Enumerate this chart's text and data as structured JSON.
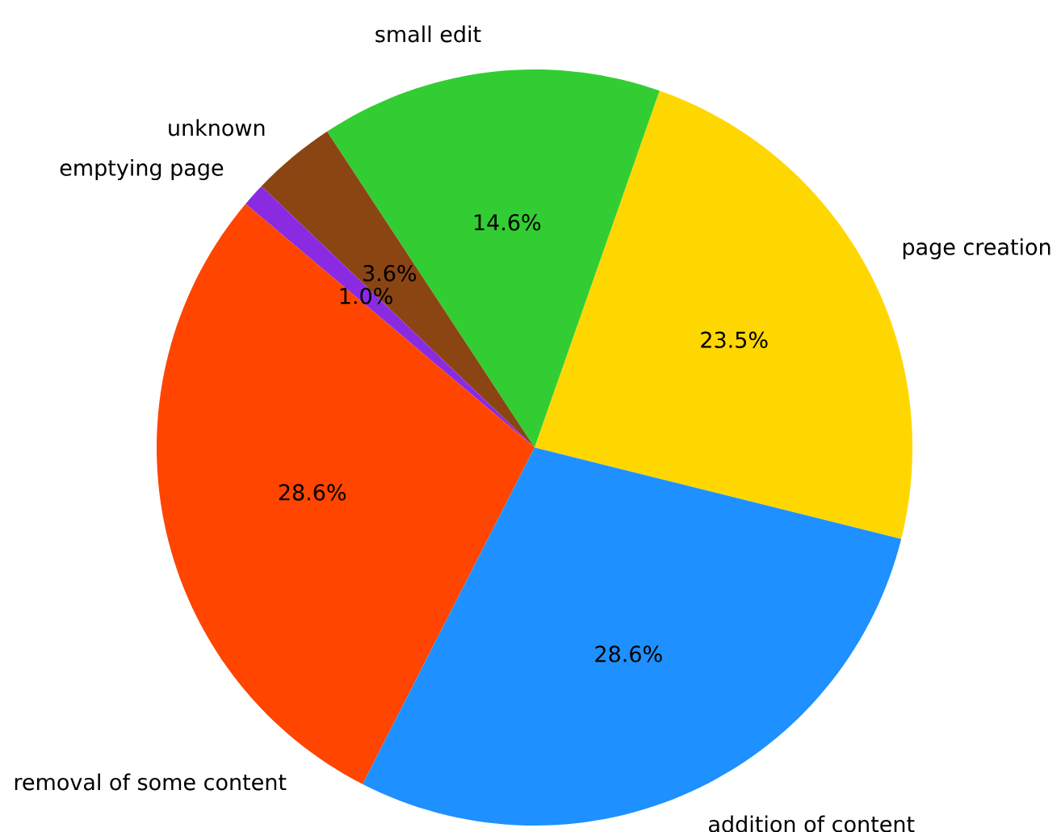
{
  "chart_data": {
    "type": "pie",
    "categories": [
      "page creation",
      "small edit",
      "unknown",
      "emptying page",
      "removal of some content",
      "addition of content"
    ],
    "values": [
      23.5,
      14.6,
      3.6,
      1.0,
      28.6,
      28.6
    ],
    "colors": [
      "#ffd700",
      "#32cd32",
      "#8b4513",
      "#8a2be2",
      "#ff4500",
      "#1e90ff"
    ],
    "value_labels": [
      "23.5%",
      "14.6%",
      "3.6%",
      "1.0%",
      "28.6%",
      "28.6%"
    ]
  }
}
